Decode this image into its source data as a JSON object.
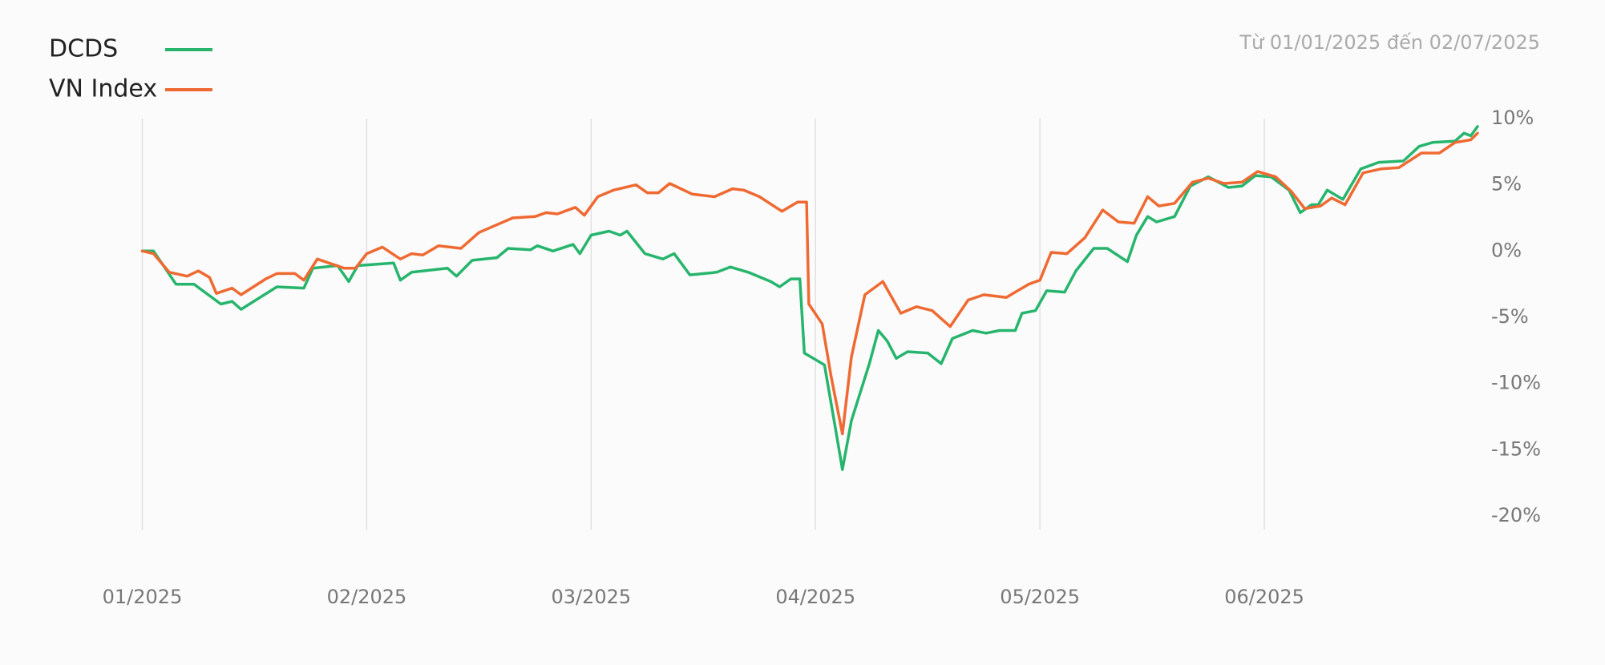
{
  "chart_data": {
    "type": "line",
    "subtitle": "Từ 01/01/2025 đến 02/07/2025",
    "legend": "top left",
    "grid": "x",
    "xlim": [
      0,
      5.95
    ],
    "xticks": [
      {
        "value": 0,
        "label": "01/2025"
      },
      {
        "value": 1,
        "label": "02/2025"
      },
      {
        "value": 2,
        "label": "03/2025"
      },
      {
        "value": 3,
        "label": "04/2025"
      },
      {
        "value": 4,
        "label": "05/2025"
      },
      {
        "value": 5,
        "label": "06/2025"
      }
    ],
    "ylim": [
      -20,
      10
    ],
    "yticks": [
      {
        "value": 10,
        "label": "10%"
      },
      {
        "value": 5,
        "label": "5%"
      },
      {
        "value": 0,
        "label": "0%"
      },
      {
        "value": -5,
        "label": "-5%"
      },
      {
        "value": -10,
        "label": "-10%"
      },
      {
        "value": -15,
        "label": "-15%"
      },
      {
        "value": -20,
        "label": "-20%"
      }
    ],
    "series": [
      {
        "name": "DCDS",
        "color": "#27b56d",
        "x": [
          0,
          0.05,
          0.15,
          0.23,
          0.35,
          0.4,
          0.44,
          0.6,
          0.72,
          0.76,
          0.87,
          0.92,
          0.96,
          1.12,
          1.15,
          1.2,
          1.36,
          1.4,
          1.47,
          1.58,
          1.63,
          1.73,
          1.76,
          1.83,
          1.92,
          1.95,
          2.0,
          2.08,
          2.13,
          2.16,
          2.24,
          2.32,
          2.37,
          2.44,
          2.56,
          2.62,
          2.7,
          2.8,
          2.84,
          2.89,
          2.93,
          2.95,
          3.04,
          3.09,
          3.12,
          3.16,
          3.24,
          3.28,
          3.32,
          3.36,
          3.41,
          3.5,
          3.56,
          3.61,
          3.7,
          3.76,
          3.82,
          3.89,
          3.92,
          3.98,
          4.03,
          4.11,
          4.16,
          4.24,
          4.3,
          4.39,
          4.43,
          4.48,
          4.52,
          4.6,
          4.67,
          4.75,
          4.84,
          4.9,
          4.96,
          5.03,
          5.11,
          5.16,
          5.21,
          5.24,
          5.28,
          5.35,
          5.43,
          5.51,
          5.62,
          5.69,
          5.75,
          5.85,
          5.89,
          5.92,
          5.95
        ],
        "values": [
          0,
          0,
          -2.5,
          -2.5,
          -4,
          -3.8,
          -4.4,
          -2.7,
          -2.8,
          -1.3,
          -1.1,
          -2.3,
          -1.1,
          -0.9,
          -2.2,
          -1.6,
          -1.3,
          -1.9,
          -0.7,
          -0.5,
          0.2,
          0.1,
          0.4,
          0,
          0.5,
          -0.2,
          1.2,
          1.5,
          1.2,
          1.5,
          -0.2,
          -0.6,
          -0.2,
          -1.8,
          -1.6,
          -1.2,
          -1.6,
          -2.3,
          -2.7,
          -2.1,
          -2.1,
          -7.7,
          -8.6,
          -13.5,
          -16.5,
          -12.8,
          -8.5,
          -6,
          -6.8,
          -8.1,
          -7.6,
          -7.7,
          -8.5,
          -6.6,
          -6,
          -6.2,
          -6,
          -6,
          -4.7,
          -4.5,
          -3,
          -3.1,
          -1.5,
          0.2,
          0.2,
          -0.8,
          1.2,
          2.6,
          2.2,
          2.6,
          4.9,
          5.6,
          4.8,
          4.9,
          5.7,
          5.6,
          4.6,
          2.9,
          3.5,
          3.5,
          4.6,
          3.9,
          6.2,
          6.7,
          6.8,
          7.9,
          8.2,
          8.3,
          8.9,
          8.7,
          9.4
        ]
      },
      {
        "name": "VN Index",
        "color": "#ef6a32",
        "x": [
          0,
          0.05,
          0.12,
          0.2,
          0.25,
          0.3,
          0.33,
          0.4,
          0.44,
          0.55,
          0.6,
          0.68,
          0.72,
          0.78,
          0.9,
          0.95,
          1.0,
          1.07,
          1.15,
          1.2,
          1.25,
          1.32,
          1.42,
          1.5,
          1.65,
          1.75,
          1.8,
          1.85,
          1.93,
          1.97,
          2.03,
          2.1,
          2.2,
          2.25,
          2.3,
          2.35,
          2.45,
          2.55,
          2.63,
          2.68,
          2.75,
          2.85,
          2.92,
          2.96,
          2.97,
          3.03,
          3.07,
          3.12,
          3.16,
          3.22,
          3.3,
          3.38,
          3.45,
          3.52,
          3.6,
          3.68,
          3.75,
          3.85,
          3.95,
          4.0,
          4.05,
          4.12,
          4.2,
          4.28,
          4.35,
          4.42,
          4.48,
          4.53,
          4.6,
          4.68,
          4.75,
          4.82,
          4.9,
          4.97,
          5.05,
          5.12,
          5.18,
          5.25,
          5.3,
          5.36,
          5.44,
          5.52,
          5.6,
          5.7,
          5.78,
          5.85,
          5.92,
          5.95
        ],
        "values": [
          0,
          -0.2,
          -1.6,
          -1.9,
          -1.5,
          -2,
          -3.2,
          -2.8,
          -3.3,
          -2.1,
          -1.7,
          -1.7,
          -2.2,
          -0.6,
          -1.3,
          -1.3,
          -0.2,
          0.3,
          -0.6,
          -0.2,
          -0.3,
          0.4,
          0.2,
          1.4,
          2.5,
          2.6,
          2.9,
          2.8,
          3.3,
          2.7,
          4.1,
          4.6,
          5.0,
          4.4,
          4.4,
          5.1,
          4.3,
          4.1,
          4.7,
          4.6,
          4.1,
          3.0,
          3.7,
          3.7,
          -4,
          -5.5,
          -9.5,
          -13.8,
          -8,
          -3.3,
          -2.3,
          -4.7,
          -4.2,
          -4.5,
          -5.7,
          -3.7,
          -3.3,
          -3.5,
          -2.5,
          -2.2,
          -0.1,
          -0.2,
          1.0,
          3.1,
          2.2,
          2.1,
          4.1,
          3.4,
          3.6,
          5.2,
          5.5,
          5.1,
          5.2,
          6.0,
          5.6,
          4.5,
          3.2,
          3.4,
          4.0,
          3.5,
          5.9,
          6.2,
          6.3,
          7.4,
          7.4,
          8.2,
          8.4,
          8.9
        ]
      }
    ]
  }
}
